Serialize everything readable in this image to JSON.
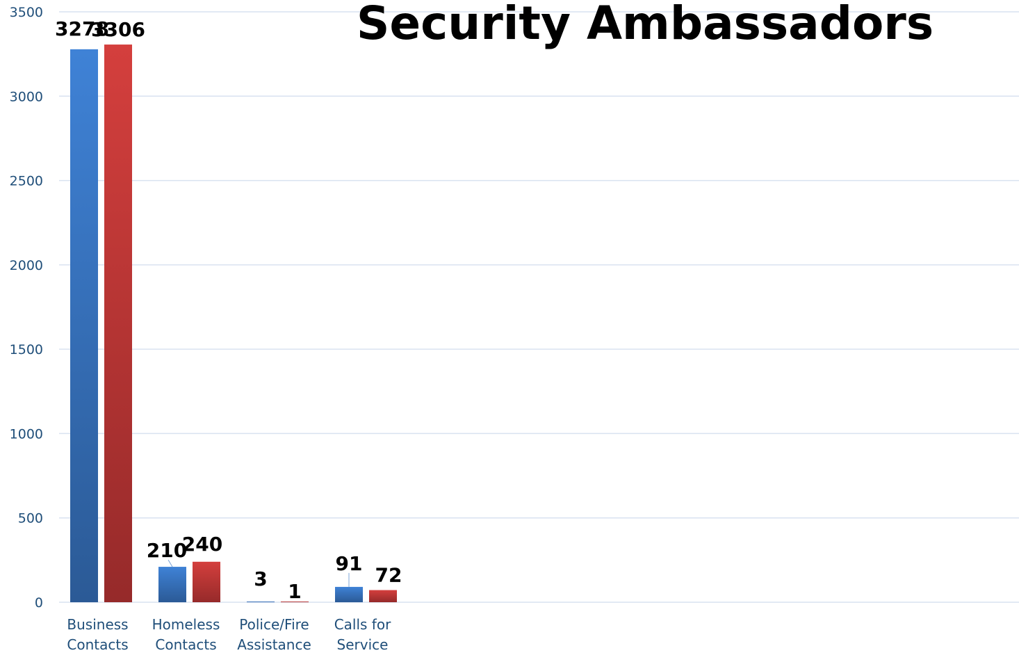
{
  "chart_data": {
    "type": "bar",
    "title": "Security Ambassadors",
    "categories": [
      [
        "Business",
        "Contacts"
      ],
      [
        "Homeless",
        "Contacts"
      ],
      [
        "Police/Fire",
        "Assistance"
      ],
      [
        "Calls for",
        "Service"
      ]
    ],
    "series": [
      {
        "values": [
          3278,
          210,
          3,
          91
        ],
        "color": "#3a7bd0"
      },
      {
        "values": [
          3306,
          240,
          1,
          72
        ],
        "color": "#c7383a"
      }
    ],
    "ylim": [
      0,
      3500
    ],
    "yticks": [
      0,
      500,
      1000,
      1500,
      2000,
      2500,
      3000,
      3500
    ],
    "grid": true,
    "legend": "none"
  }
}
